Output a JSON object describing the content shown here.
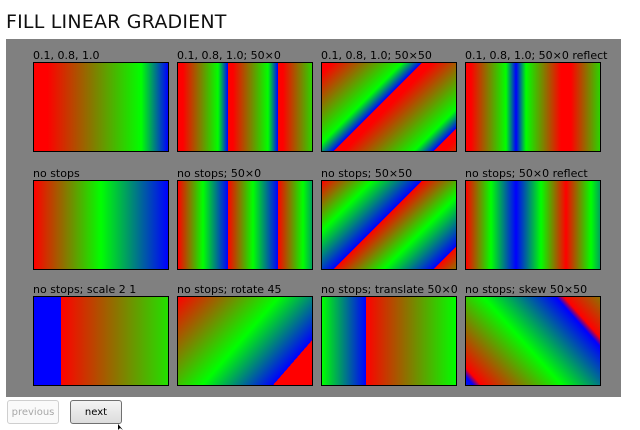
{
  "page": {
    "title": "FILL LINEAR GRADIENT"
  },
  "tiles": [
    {
      "label": "0.1, 0.8, 1.0"
    },
    {
      "label": "0.1, 0.8, 1.0; 50×0"
    },
    {
      "label": "0.1, 0.8, 1.0; 50×50"
    },
    {
      "label": "0.1, 0.8, 1.0; 50×0 reflect"
    },
    {
      "label": "no stops"
    },
    {
      "label": "no stops; 50×0"
    },
    {
      "label": "no stops; 50×50"
    },
    {
      "label": "no stops; 50×0 reflect"
    },
    {
      "label": "no stops; scale 2 1"
    },
    {
      "label": "no stops; rotate 45"
    },
    {
      "label": "no stops; translate 50×0"
    },
    {
      "label": "no stops; skew 50×50"
    }
  ],
  "colors": {
    "red": "#ff0000",
    "green": "#00ff00",
    "blue": "#0000ff",
    "panel": "#808080"
  },
  "nav": {
    "previous_label": "previous",
    "next_label": "next"
  }
}
